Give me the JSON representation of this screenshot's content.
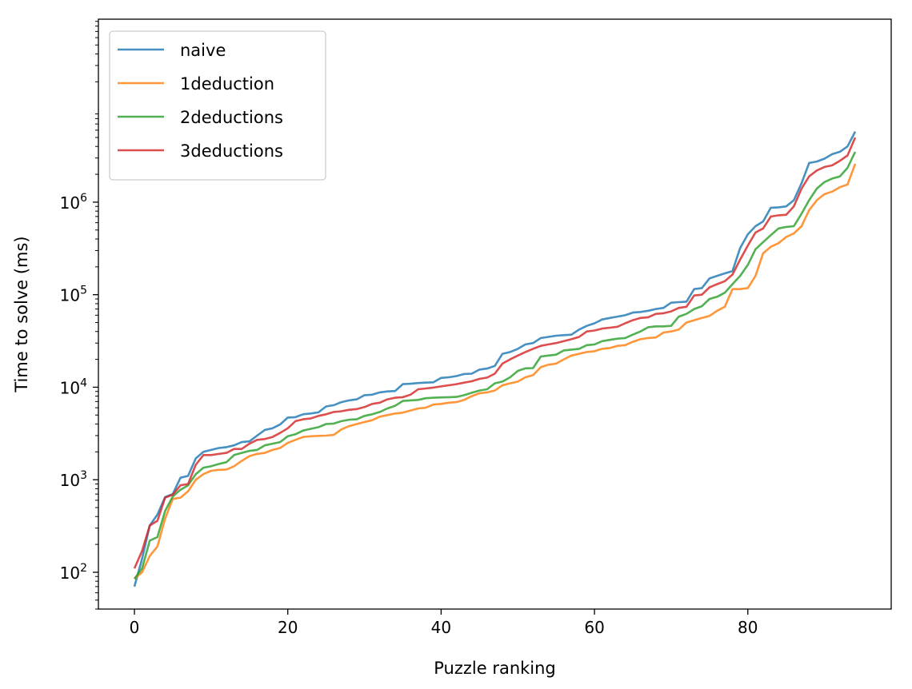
{
  "chart_data": {
    "type": "line",
    "title": "",
    "xlabel": "Puzzle ranking",
    "ylabel": "Time to solve (ms)",
    "xlim": [
      -4.7,
      98.7
    ],
    "ylim": [
      40,
      95000000
    ],
    "yscale": "log",
    "grid": false,
    "legend_position": "top-left",
    "x_ticks": [
      {
        "value": 0,
        "label": "0"
      },
      {
        "value": 20,
        "label": "20"
      },
      {
        "value": 40,
        "label": "40"
      },
      {
        "value": 60,
        "label": "60"
      },
      {
        "value": 80,
        "label": "80"
      }
    ],
    "y_ticks": [
      {
        "value": 100,
        "base": "10",
        "exp": "2"
      },
      {
        "value": 1000,
        "base": "10",
        "exp": "3"
      },
      {
        "value": 10000,
        "base": "10",
        "exp": "4"
      },
      {
        "value": 100000,
        "base": "10",
        "exp": "5"
      },
      {
        "value": 1000000,
        "base": "10",
        "exp": "6"
      }
    ],
    "x": [
      0,
      1,
      2,
      3,
      4,
      5,
      6,
      7,
      8,
      9,
      10,
      11,
      12,
      13,
      14,
      15,
      16,
      17,
      18,
      19,
      20,
      21,
      22,
      23,
      24,
      25,
      26,
      27,
      28,
      29,
      30,
      31,
      32,
      33,
      34,
      35,
      36,
      37,
      38,
      39,
      40,
      41,
      42,
      43,
      44,
      45,
      46,
      47,
      48,
      49,
      50,
      51,
      52,
      53,
      54,
      55,
      56,
      57,
      58,
      59,
      60,
      61,
      62,
      63,
      64,
      65,
      66,
      67,
      68,
      69,
      70,
      71,
      72,
      73,
      74,
      75,
      76,
      77,
      78,
      79,
      80,
      81,
      82,
      83,
      84,
      85,
      86,
      87,
      88,
      89,
      90,
      91,
      92,
      93,
      94
    ],
    "series": [
      {
        "name": "naive",
        "color": "#1f77b4",
        "values": [
          70,
          140,
          320,
          420,
          650,
          700,
          1050,
          1100,
          1700,
          2000,
          2100,
          2200,
          2250,
          2350,
          2550,
          2600,
          3000,
          3450,
          3600,
          3950,
          4700,
          4750,
          5100,
          5200,
          5350,
          6200,
          6400,
          6900,
          7200,
          7400,
          8200,
          8300,
          8800,
          9000,
          9100,
          10800,
          10900,
          11100,
          11200,
          11300,
          12600,
          12800,
          13200,
          13900,
          14000,
          15500,
          15900,
          17000,
          23000,
          24000,
          26000,
          29000,
          30000,
          34000,
          35000,
          36000,
          36500,
          37000,
          42000,
          46000,
          49000,
          54000,
          56000,
          58000,
          60000,
          64000,
          65000,
          67000,
          70000,
          72000,
          82000,
          83000,
          84000,
          115000,
          118000,
          150000,
          160000,
          170000,
          180000,
          320000,
          450000,
          550000,
          620000,
          870000,
          880000,
          900000,
          1050000,
          1600000,
          2650000,
          2750000,
          2950000,
          3300000,
          3500000,
          4000000,
          5800000
        ]
      },
      {
        "name": "1deduction",
        "color": "#ff7f0e",
        "values": [
          85,
          100,
          150,
          190,
          380,
          620,
          640,
          750,
          1000,
          1150,
          1250,
          1280,
          1290,
          1400,
          1600,
          1800,
          1900,
          1950,
          2100,
          2200,
          2500,
          2700,
          2900,
          2950,
          2980,
          3000,
          3050,
          3500,
          3800,
          4000,
          4200,
          4400,
          4800,
          5000,
          5200,
          5300,
          5600,
          5900,
          6000,
          6500,
          6600,
          6800,
          6900,
          7300,
          8000,
          8600,
          8800,
          9200,
          10500,
          11000,
          11500,
          12800,
          13500,
          16500,
          17500,
          18000,
          20000,
          22000,
          23000,
          24000,
          24500,
          26000,
          26500,
          28000,
          28500,
          31000,
          33000,
          34000,
          34500,
          39000,
          40000,
          42000,
          50000,
          53000,
          56000,
          59000,
          67000,
          74000,
          115000,
          115000,
          118000,
          160000,
          280000,
          330000,
          360000,
          420000,
          460000,
          550000,
          820000,
          1050000,
          1220000,
          1300000,
          1450000,
          1550000,
          2600000
        ]
      },
      {
        "name": "2deductions",
        "color": "#2ca02c",
        "values": [
          85,
          110,
          220,
          240,
          460,
          660,
          780,
          870,
          1150,
          1350,
          1400,
          1480,
          1550,
          1850,
          1950,
          2050,
          2100,
          2350,
          2450,
          2550,
          2950,
          3100,
          3400,
          3550,
          3700,
          4000,
          4050,
          4300,
          4450,
          4500,
          4900,
          5100,
          5400,
          5900,
          6300,
          7100,
          7200,
          7300,
          7600,
          7700,
          7750,
          7800,
          7850,
          8200,
          8700,
          9200,
          9500,
          11000,
          11500,
          12800,
          15000,
          16000,
          16100,
          21500,
          22000,
          22500,
          25000,
          25500,
          26000,
          28500,
          29000,
          31500,
          32500,
          33500,
          34000,
          37000,
          40000,
          44500,
          45500,
          45500,
          46000,
          58000,
          62000,
          70000,
          75000,
          90000,
          95000,
          105000,
          130000,
          160000,
          210000,
          310000,
          370000,
          440000,
          520000,
          540000,
          550000,
          750000,
          1050000,
          1400000,
          1650000,
          1800000,
          1900000,
          2350000,
          3500000
        ]
      },
      {
        "name": "3deductions",
        "color": "#d62728",
        "values": [
          110,
          170,
          320,
          360,
          640,
          690,
          870,
          900,
          1450,
          1850,
          1850,
          1900,
          1950,
          2150,
          2150,
          2450,
          2700,
          2750,
          2900,
          3200,
          3600,
          4300,
          4500,
          4600,
          4900,
          5100,
          5400,
          5500,
          5700,
          5800,
          6100,
          6600,
          6800,
          7400,
          7700,
          7800,
          8300,
          9500,
          9700,
          9900,
          10200,
          10500,
          10800,
          11200,
          11600,
          12300,
          12700,
          14000,
          18000,
          20000,
          22000,
          24000,
          26000,
          28000,
          29000,
          30000,
          31500,
          33000,
          35000,
          40000,
          41000,
          43000,
          44000,
          45000,
          49000,
          53000,
          56000,
          57000,
          62000,
          63000,
          66000,
          72000,
          74000,
          98000,
          100000,
          120000,
          130000,
          140000,
          165000,
          240000,
          340000,
          470000,
          520000,
          700000,
          720000,
          730000,
          900000,
          1400000,
          1900000,
          2200000,
          2400000,
          2500000,
          2800000,
          3200000,
          5000000
        ]
      }
    ]
  }
}
